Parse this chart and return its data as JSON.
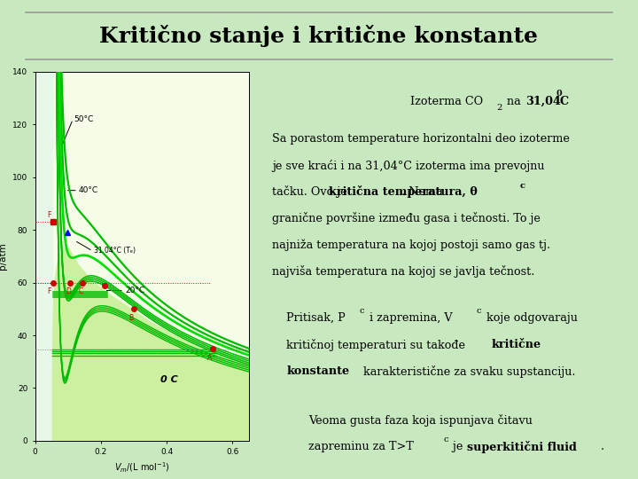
{
  "background_color": "#c8e8c0",
  "title": "Kritično stanje i kritične konstante",
  "title_fontsize": 18,
  "axes_xlim": [
    0,
    0.65
  ],
  "axes_ylim": [
    0,
    140
  ],
  "xticks": [
    0,
    0.2,
    0.4,
    0.6
  ],
  "yticks": [
    0,
    20,
    40,
    60,
    80,
    100,
    120,
    140
  ],
  "line_color": "#00bb00",
  "fill_color": "#ccf0a0",
  "label_50": "50°C",
  "label_40": "40°C",
  "label_31": "31.04°C (Tₑ)",
  "label_20": "20°C",
  "label_0": "0 C"
}
